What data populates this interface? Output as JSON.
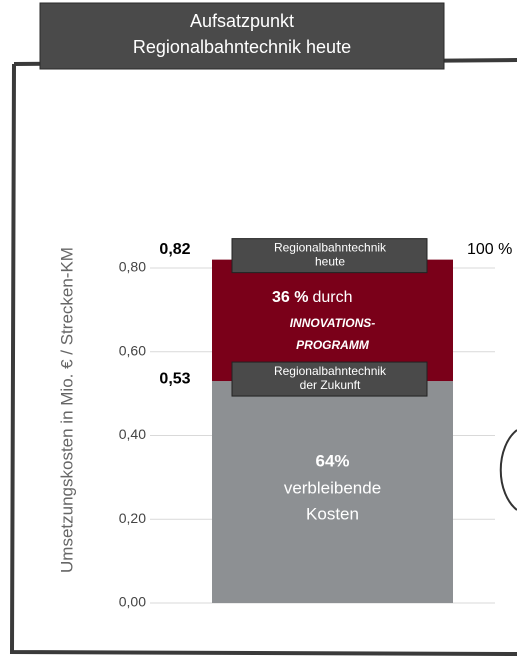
{
  "chart_data": {
    "type": "stacked_bar",
    "title": "Aufsatzpunkt Regionalbahntechnik heute",
    "ylabel": "Umsetzungskosten in Mio. € / Strecken-KM",
    "categories": [
      null
    ],
    "series": [
      {
        "color": "#8d9093",
        "values": [
          0.53
        ],
        "value_labels": [
          "0,53"
        ],
        "text": [
          "64%",
          "verbleibende",
          "Kosten"
        ]
      },
      {
        "color": "#7a0019",
        "values": [
          0.29
        ],
        "text": [
          "36 %",
          "durch",
          "INNOVATIONS-",
          "PROGRAMM"
        ]
      }
    ],
    "annotations": [
      "0,82",
      "100 %",
      "Regionalbahntechnik heute",
      "Regionalbahntechnik der Zukunft"
    ],
    "ylim": [
      0,
      0.8
    ],
    "yticks": [
      {
        "value": 0,
        "label": "0,00"
      },
      {
        "value": 0.2,
        "label": "0,20"
      },
      {
        "value": 0.4,
        "label": "0,40"
      },
      {
        "value": 0.6,
        "label": "0,60"
      },
      {
        "value": 0.8,
        "label": "0,80"
      }
    ],
    "grid": true
  }
}
